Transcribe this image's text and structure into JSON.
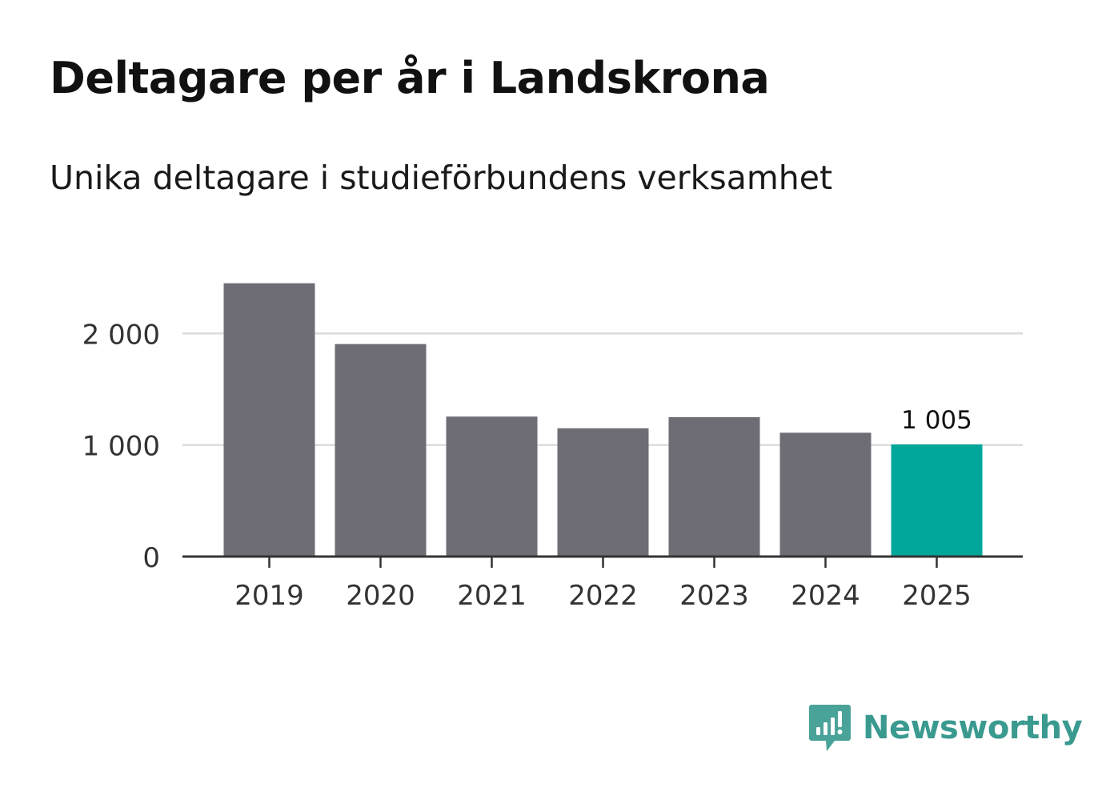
{
  "title": "Deltagare per år i Landskrona",
  "subtitle": "Unika deltagare i studieförbundens verksamhet",
  "colors": {
    "bar": "#6e6d75",
    "highlight": "#00a69a",
    "grid": "#dcdcdc",
    "axis": "#333333",
    "text": "#333333",
    "brand": "#3a9a90",
    "logo": "#4aa399"
  },
  "chart_data": {
    "type": "bar",
    "title": "Deltagare per år i Landskrona",
    "subtitle": "Unika deltagare i studieförbundens verksamhet",
    "xlabel": "",
    "ylabel": "",
    "categories": [
      "2019",
      "2020",
      "2021",
      "2022",
      "2023",
      "2024",
      "2025"
    ],
    "values": [
      2450,
      1905,
      1255,
      1150,
      1250,
      1110,
      1005
    ],
    "highlight_index": 6,
    "data_labels": [
      {
        "index": 6,
        "text": "1 005"
      }
    ],
    "ylim": [
      0,
      2500
    ],
    "yticks": [
      {
        "value": 0,
        "label": "0"
      },
      {
        "value": 1000,
        "label": "1 000"
      },
      {
        "value": 2000,
        "label": "2 000"
      }
    ],
    "grid": true,
    "legend": "none"
  },
  "brand": {
    "name": "Newsworthy",
    "logo_icon": "newsworthy-logo-icon"
  }
}
